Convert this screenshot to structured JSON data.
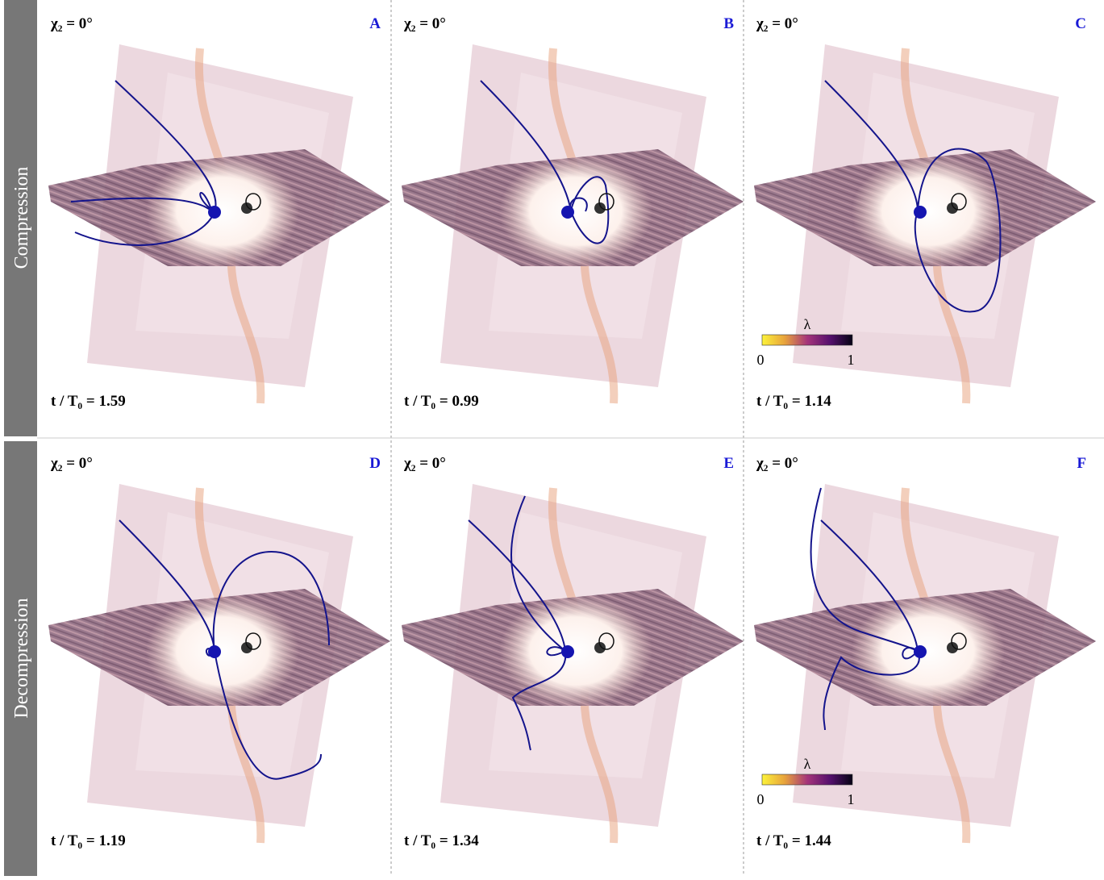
{
  "rows": [
    "Compression",
    "Decompression"
  ],
  "panels": [
    {
      "letter": "A",
      "chi_label": "χ₂ = 0°",
      "time_label": "t / T₀ = 1.59"
    },
    {
      "letter": "B",
      "chi_label": "χ₂ = 0°",
      "time_label": "t / T₀ = 0.99"
    },
    {
      "letter": "C",
      "chi_label": "χ₂ = 0°",
      "time_label": "t / T₀ = 1.14",
      "colorbar": {
        "title": "λ",
        "min": "0",
        "max": "1"
      }
    },
    {
      "letter": "D",
      "chi_label": "χ₂ = 0°",
      "time_label": "t / T₀ = 1.19"
    },
    {
      "letter": "E",
      "chi_label": "χ₂ = 0°",
      "time_label": "t / T₀ = 1.34"
    },
    {
      "letter": "F",
      "chi_label": "χ₂ = 0°",
      "time_label": "t / T₀ = 1.44",
      "colorbar": {
        "title": "λ",
        "min": "0",
        "max": "1"
      }
    }
  ]
}
